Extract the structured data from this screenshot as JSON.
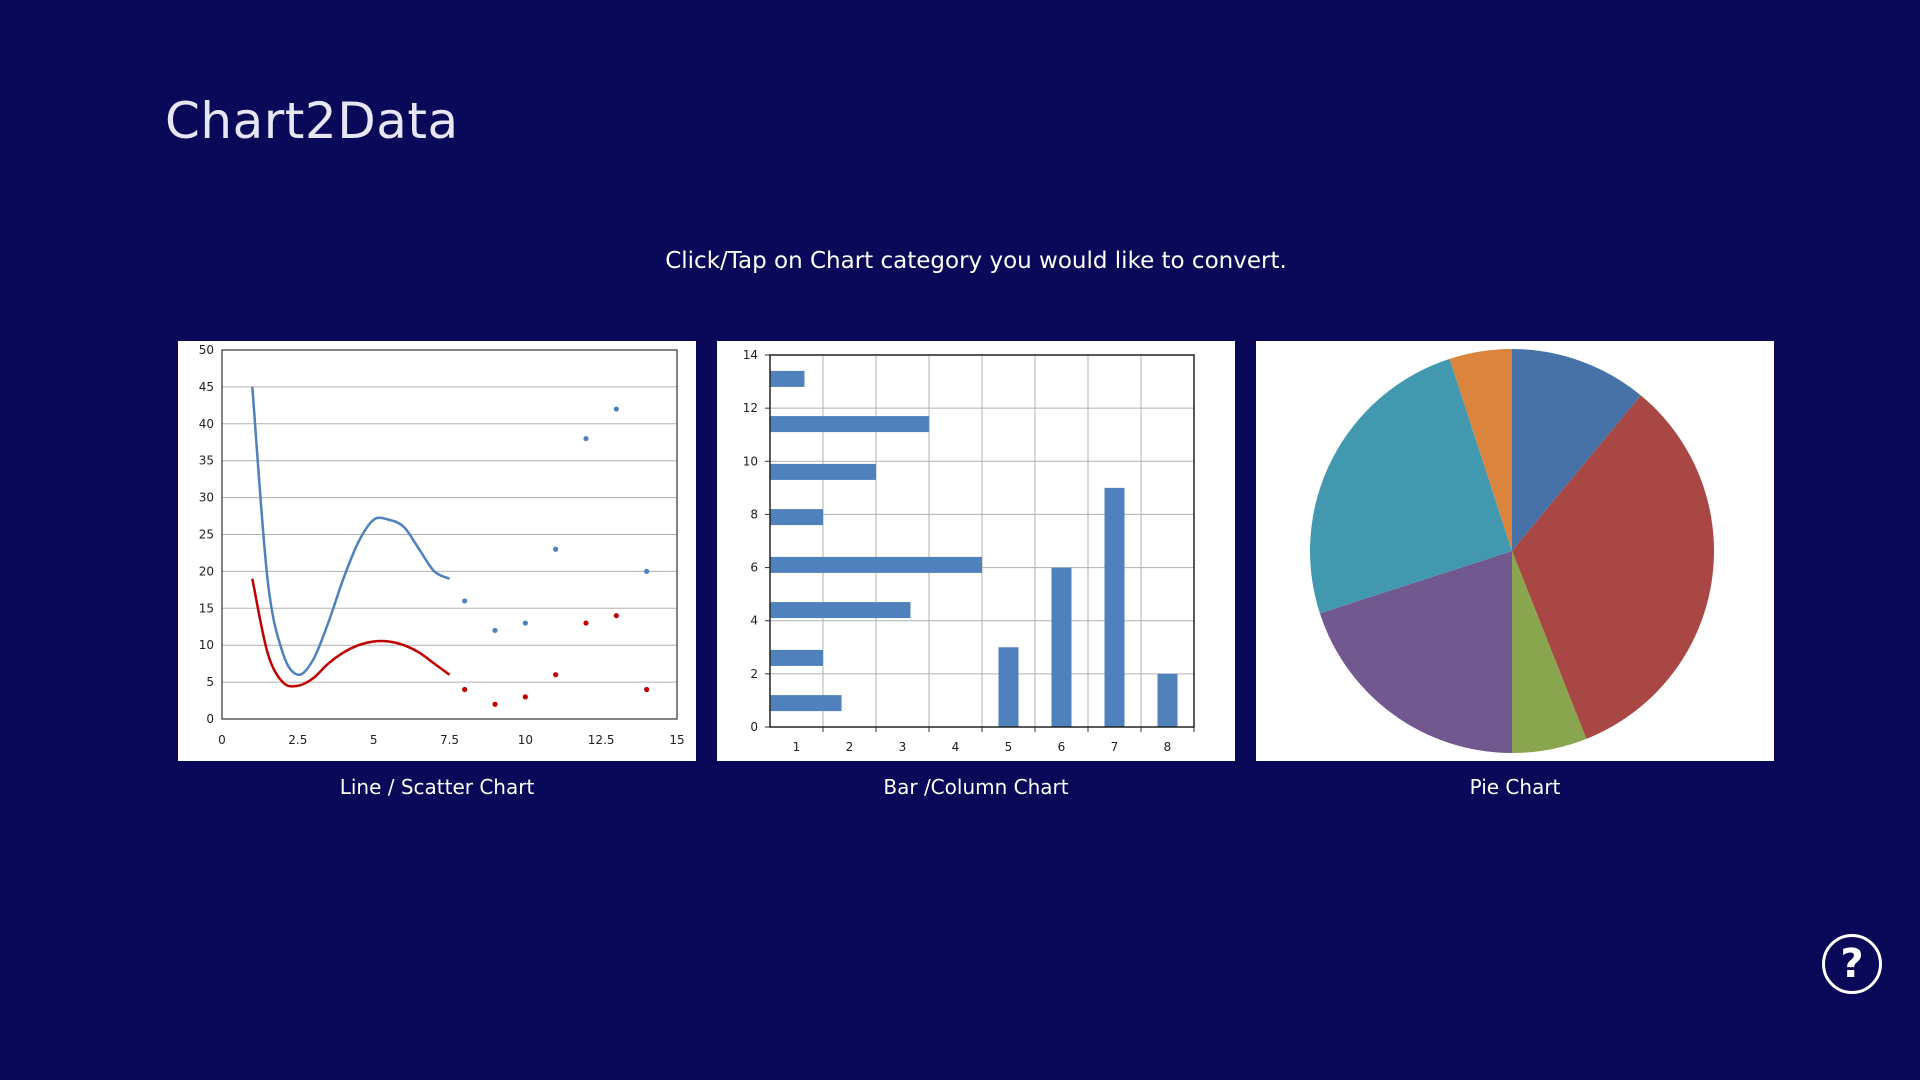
{
  "app": {
    "title": "Chart2Data"
  },
  "instruction": "Click/Tap on Chart category you would like to convert.",
  "tiles": [
    {
      "label": "Line / Scatter Chart"
    },
    {
      "label": "Bar /Column Chart"
    },
    {
      "label": "Pie Chart"
    }
  ],
  "help": {
    "glyph": "?",
    "icon": "help-icon"
  },
  "chart_data": [
    {
      "type": "scatter",
      "title": "",
      "xlim": [
        0,
        15
      ],
      "ylim": [
        0,
        50
      ],
      "x_ticks": [
        "0",
        "2.5",
        "5",
        "7.5",
        "10",
        "12.5",
        "15"
      ],
      "y_ticks": [
        "0",
        "5",
        "10",
        "15",
        "20",
        "25",
        "30",
        "35",
        "40",
        "45",
        "50"
      ],
      "grid": "horizontal",
      "series": [
        {
          "kind": "line",
          "color": "#4f81bd",
          "x": [
            1,
            1.5,
            2,
            2.5,
            3,
            3.5,
            4,
            4.5,
            5,
            5.5,
            6,
            6.5,
            7,
            7.5
          ],
          "y": [
            45,
            19,
            9,
            6,
            8,
            13,
            19,
            24,
            27,
            27,
            26,
            23,
            20,
            19
          ]
        },
        {
          "kind": "line",
          "color": "#c00000",
          "x": [
            1,
            1.5,
            2,
            2.5,
            3,
            3.5,
            4,
            4.5,
            5,
            5.5,
            6,
            6.5,
            7,
            7.5
          ],
          "y": [
            19,
            9,
            5,
            4.5,
            5.5,
            7.5,
            9,
            10,
            10.5,
            10.5,
            10,
            9,
            7.5,
            6
          ]
        },
        {
          "kind": "points",
          "color": "#4f81bd",
          "x": [
            8,
            9,
            10,
            11,
            12,
            13,
            14
          ],
          "y": [
            16,
            12,
            13,
            23,
            38,
            42,
            20
          ]
        },
        {
          "kind": "points",
          "color": "#c00000",
          "x": [
            8,
            9,
            10,
            11,
            12,
            13,
            14
          ],
          "y": [
            4,
            2,
            3,
            6,
            13,
            14,
            4
          ]
        }
      ]
    },
    {
      "type": "bar",
      "title": "",
      "categories": [
        "1",
        "2",
        "3",
        "4",
        "5",
        "6",
        "7",
        "8"
      ],
      "y_ticks": [
        "0",
        "2",
        "4",
        "6",
        "8",
        "10",
        "12",
        "14"
      ],
      "ylim": [
        0,
        14
      ],
      "grid": "both",
      "color": "#4f81bd",
      "horizontal_bars": [
        {
          "y": 0.9,
          "x": 1.35
        },
        {
          "y": 2.6,
          "x": 1.0
        },
        {
          "y": 4.4,
          "x": 2.65
        },
        {
          "y": 6.1,
          "x": 4.0
        },
        {
          "y": 7.9,
          "x": 1.0
        },
        {
          "y": 9.6,
          "x": 2.0
        },
        {
          "y": 11.4,
          "x": 3.0
        },
        {
          "y": 13.1,
          "x": 0.65
        }
      ],
      "columns": [
        {
          "category": "5",
          "value": 3
        },
        {
          "category": "6",
          "value": 6
        },
        {
          "category": "7",
          "value": 9
        },
        {
          "category": "8",
          "value": 2
        }
      ]
    },
    {
      "type": "pie",
      "title": "",
      "slices": [
        {
          "value": 11,
          "color": "#4672a8"
        },
        {
          "value": 33,
          "color": "#a84744"
        },
        {
          "value": 6,
          "color": "#89a54e"
        },
        {
          "value": 20,
          "color": "#71588f"
        },
        {
          "value": 25,
          "color": "#4198af"
        },
        {
          "value": 5,
          "color": "#db843d"
        }
      ]
    }
  ]
}
